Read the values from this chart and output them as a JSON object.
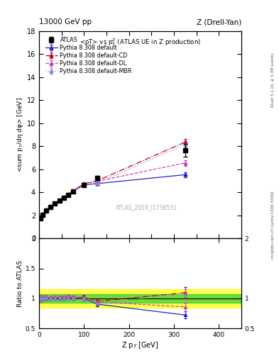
{
  "title_left": "13000 GeV pp",
  "title_right": "Z (Drell-Yan)",
  "plot_title": "<pT> vs p$_T^Z$ (ATLAS UE in Z production)",
  "ylabel_main": "<sum p$_T$/dη dφ> [GeV]",
  "ylabel_ratio": "Ratio to ATLAS",
  "xlabel": "Z p$_T$ [GeV]",
  "right_label_top": "Rivet 3.1.10, ≥ 3.3M events",
  "right_label_bottom": "mcplots.cern.ch [arXiv:1306.3436]",
  "watermark": "ATLAS_2019_I1736531",
  "atlas_x": [
    2.5,
    7.5,
    15,
    25,
    35,
    45,
    55,
    65,
    75,
    100,
    130,
    325
  ],
  "atlas_y": [
    1.73,
    2.05,
    2.42,
    2.74,
    3.0,
    3.25,
    3.52,
    3.73,
    4.05,
    4.65,
    5.25,
    7.62
  ],
  "atlas_yerr": [
    0.08,
    0.08,
    0.08,
    0.08,
    0.09,
    0.1,
    0.1,
    0.11,
    0.12,
    0.14,
    0.18,
    0.55
  ],
  "py_default_x": [
    2.5,
    7.5,
    15,
    25,
    35,
    45,
    55,
    65,
    75,
    100,
    130,
    325
  ],
  "py_default_y": [
    1.73,
    2.07,
    2.44,
    2.75,
    3.02,
    3.28,
    3.54,
    3.78,
    4.08,
    4.63,
    4.75,
    5.52
  ],
  "py_default_yerr": [
    0.01,
    0.01,
    0.01,
    0.01,
    0.01,
    0.01,
    0.01,
    0.01,
    0.01,
    0.02,
    0.02,
    0.2
  ],
  "py_cd_x": [
    2.5,
    7.5,
    15,
    25,
    35,
    45,
    55,
    65,
    75,
    100,
    130,
    325
  ],
  "py_cd_y": [
    1.73,
    2.07,
    2.44,
    2.76,
    3.04,
    3.3,
    3.57,
    3.82,
    4.12,
    4.75,
    5.0,
    8.35
  ],
  "py_cd_yerr": [
    0.01,
    0.01,
    0.01,
    0.01,
    0.01,
    0.01,
    0.01,
    0.01,
    0.01,
    0.02,
    0.02,
    0.3
  ],
  "py_dl_x": [
    2.5,
    7.5,
    15,
    25,
    35,
    45,
    55,
    65,
    75,
    100,
    130,
    325
  ],
  "py_dl_y": [
    1.73,
    2.07,
    2.44,
    2.76,
    3.04,
    3.29,
    3.57,
    3.82,
    4.12,
    4.72,
    4.95,
    6.55
  ],
  "py_dl_yerr": [
    0.01,
    0.01,
    0.01,
    0.01,
    0.01,
    0.01,
    0.01,
    0.01,
    0.01,
    0.02,
    0.02,
    0.25
  ],
  "py_mbr_x": [
    2.5,
    7.5,
    15,
    25,
    35,
    45,
    55,
    65,
    75,
    100,
    130,
    325
  ],
  "py_mbr_y": [
    1.73,
    2.07,
    2.44,
    2.75,
    3.02,
    3.28,
    3.54,
    3.78,
    4.08,
    4.65,
    4.8,
    8.15
  ],
  "py_mbr_yerr": [
    0.01,
    0.01,
    0.01,
    0.01,
    0.01,
    0.01,
    0.01,
    0.01,
    0.01,
    0.02,
    0.02,
    0.28
  ],
  "ylim_main": [
    0,
    18
  ],
  "ylim_ratio": [
    0.5,
    2.0
  ],
  "xlim": [
    0,
    450
  ],
  "green_band_low": 0.93,
  "green_band_high": 1.07,
  "yellow_band_low": 0.85,
  "yellow_band_high": 1.15,
  "color_atlas": "#000000",
  "color_default": "#2222cc",
  "color_cd": "#bb0022",
  "color_dl": "#cc44aa",
  "color_mbr": "#8888cc"
}
